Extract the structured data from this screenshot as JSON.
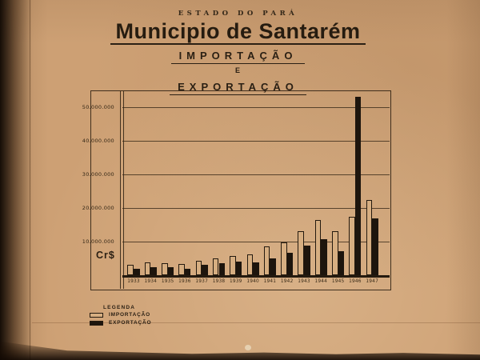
{
  "header": {
    "kicker": "ESTADO DO PARÁ",
    "title": "Municipio de Santarém",
    "subtitle_1": "IMPORTAÇÃO",
    "conjunction": "E",
    "subtitle_2": "EXPORTAÇÃO"
  },
  "axis": {
    "currency_label": "Cr$"
  },
  "legend": {
    "title": "LEGENDA",
    "items": [
      {
        "label": "IMPORTAÇÃO",
        "swatch": "outline"
      },
      {
        "label": "EXPORTAÇÃO",
        "swatch": "filled"
      }
    ]
  },
  "colors": {
    "ink": "#2b2014",
    "bar_filled": "#1d150d",
    "bar_outline_fill": "#d6ae81",
    "paper": "#cda074"
  },
  "chart_data": {
    "type": "bar",
    "title": "Municipio de Santarém — Importação e Exportação",
    "unit": "Cr$ (cruzeiros)",
    "categories": [
      "1933",
      "1934",
      "1935",
      "1936",
      "1937",
      "1938",
      "1939",
      "1940",
      "1941",
      "1942",
      "1943",
      "1944",
      "1945",
      "1946",
      "1947"
    ],
    "series": [
      {
        "name": "IMPORTAÇÃO",
        "style": "outline",
        "values": [
          3000000,
          3800000,
          3600000,
          3400000,
          4400000,
          5000000,
          5800000,
          6300000,
          8600000,
          9800000,
          13000000,
          16500000,
          13200000,
          17500000,
          22500000
        ]
      },
      {
        "name": "EXPORTAÇÃO",
        "style": "filled",
        "values": [
          2000000,
          2300000,
          2400000,
          2000000,
          3000000,
          3600000,
          4000000,
          3900000,
          4900000,
          6600000,
          8800000,
          10800000,
          7200000,
          53000000,
          16800000
        ]
      }
    ],
    "ylabel": "Cr$",
    "ylim": [
      0,
      50000000
    ],
    "y_ticks": [
      {
        "value": 50000000,
        "label": "50.000.000"
      },
      {
        "value": 40000000,
        "label": "40.000.000"
      },
      {
        "value": 30000000,
        "label": "30.000.000"
      },
      {
        "value": 20000000,
        "label": "20.000.000"
      },
      {
        "value": 10000000,
        "label": "10.000.000"
      }
    ],
    "grid": true,
    "legend_position": "bottom-left",
    "note": "1946 exportação bar exceeds the 50.000.000 axis maximum"
  }
}
